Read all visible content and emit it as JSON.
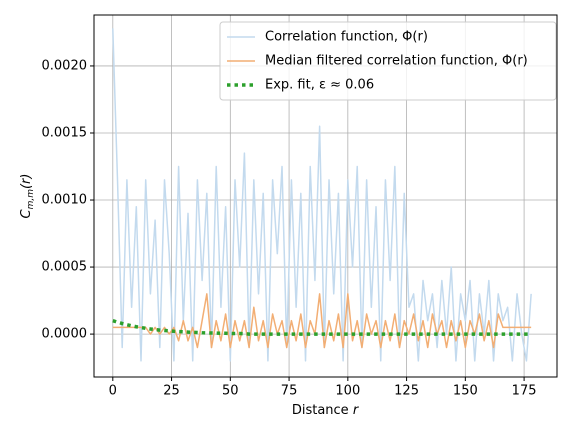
{
  "chart_data": {
    "type": "line",
    "x": [
      0,
      2,
      4,
      6,
      8,
      10,
      12,
      14,
      16,
      18,
      20,
      22,
      24,
      26,
      28,
      30,
      32,
      34,
      36,
      38,
      40,
      42,
      44,
      46,
      48,
      50,
      52,
      54,
      56,
      58,
      60,
      62,
      64,
      66,
      68,
      70,
      72,
      74,
      76,
      78,
      80,
      82,
      84,
      86,
      88,
      90,
      92,
      94,
      96,
      98,
      100,
      102,
      104,
      106,
      108,
      110,
      112,
      114,
      116,
      118,
      120,
      122,
      124,
      126,
      128,
      130,
      132,
      134,
      136,
      138,
      140,
      142,
      144,
      146,
      148,
      150,
      152,
      154,
      156,
      158,
      160,
      162,
      164,
      166,
      168,
      170,
      172,
      174,
      176,
      178
    ],
    "series": [
      {
        "name": "Correlation function, Φ(r)",
        "color": "#c3daee",
        "linestyle": "solid",
        "values": [
          0.00228,
          0.00115,
          -0.0001,
          0.00115,
          0.0002,
          0.00095,
          -0.0002,
          0.00115,
          0.0003,
          0.00085,
          -0.0001,
          0.00115,
          0.0006,
          -0.0002,
          0.00125,
          0.0001,
          0.0009,
          -0.0002,
          0.00115,
          0.0004,
          0.00105,
          -0.0001,
          0.00125,
          0.0002,
          0.00095,
          -0.0002,
          0.00115,
          0.0005,
          0.00135,
          -0.0001,
          0.00115,
          0.0003,
          0.00105,
          -0.0002,
          0.00115,
          0.0006,
          0.00125,
          -0.0001,
          0.00115,
          0.0002,
          0.00105,
          -0.0002,
          0.00125,
          0.0004,
          0.00155,
          -0.0001,
          0.00115,
          0.0003,
          0.00105,
          -0.0002,
          0.00115,
          0.0005,
          0.00125,
          -0.0001,
          0.00115,
          0.0002,
          0.00095,
          -0.0002,
          0.00115,
          0.0004,
          0.00125,
          -0.0001,
          0.00105,
          0.0002,
          0.0003,
          -0.0002,
          0.0004,
          0.0001,
          0.0003,
          -0.0001,
          0.0004,
          0.0,
          0.0005,
          -0.0002,
          0.0003,
          0.0001,
          0.0004,
          -0.0002,
          0.0003,
          0.0,
          0.0004,
          -0.0002,
          0.0003,
          0.0001,
          0.0002,
          -0.0002,
          0.0003,
          0.0,
          -0.0002,
          0.0003
        ]
      },
      {
        "name": "Median filtered correlation function, Φ(r)",
        "color": "#f2ae74",
        "linestyle": "solid",
        "values": [
          5e-05,
          5e-05,
          5e-05,
          5e-05,
          5e-05,
          5e-05,
          5e-05,
          5e-05,
          0.0,
          5e-05,
          0.0,
          5e-05,
          0.0,
          5e-05,
          -5e-05,
          0.0001,
          -5e-05,
          5e-05,
          -0.0001,
          0.0001,
          0.0003,
          -0.0001,
          0.0001,
          -5e-05,
          0.00015,
          -0.0001,
          0.0001,
          -5e-05,
          0.0001,
          -0.0001,
          0.0002,
          -5e-05,
          0.0001,
          -0.0001,
          0.00015,
          0.0,
          0.0001,
          -0.0001,
          0.0001,
          -5e-05,
          0.00015,
          -0.0001,
          0.0001,
          0.0,
          0.0003,
          -0.0001,
          0.0001,
          -5e-05,
          0.00015,
          -0.0001,
          0.0003,
          -5e-05,
          0.0001,
          -0.0001,
          0.00015,
          0.0,
          0.0001,
          -0.0001,
          0.0001,
          -5e-05,
          0.00015,
          -0.0001,
          0.0001,
          0.0,
          0.00015,
          -5e-05,
          0.0001,
          -0.0001,
          0.00015,
          0.0,
          0.0001,
          -0.0001,
          0.0001,
          -5e-05,
          0.0001,
          -0.0001,
          0.0001,
          0.0,
          0.00015,
          -5e-05,
          0.0001,
          -0.0001,
          0.00015,
          5e-05,
          5e-05,
          5e-05,
          5e-05,
          5e-05,
          5e-05,
          5e-05
        ]
      },
      {
        "name": "Exp. fit, ε ≈ 0.06",
        "color": "#2ca02c",
        "linestyle": "dotted",
        "values": [
          0.0001,
          8.9e-05,
          7.9e-05,
          7e-05,
          6.2e-05,
          5.5e-05,
          4.9e-05,
          4.3e-05,
          3.8e-05,
          3.4e-05,
          3e-05,
          2.7e-05,
          2.4e-05,
          2.1e-05,
          1.9e-05,
          1.7e-05,
          1.5e-05,
          1.3e-05,
          1.2e-05,
          1e-05,
          9e-06,
          8e-06,
          7e-06,
          6e-06,
          6e-06,
          5e-06,
          4e-06,
          4e-06,
          3e-06,
          0,
          0,
          0,
          0,
          0,
          0,
          0,
          0,
          0,
          0,
          0,
          0,
          0,
          0,
          0,
          0,
          0,
          0,
          0,
          0,
          0,
          0,
          0,
          0,
          0,
          0,
          0,
          0,
          0,
          0,
          0,
          0,
          0,
          0,
          0,
          0,
          0,
          0,
          0,
          0,
          0,
          0,
          0,
          0,
          0,
          0,
          0,
          0,
          0,
          0,
          0,
          0,
          0,
          0,
          0,
          0,
          0,
          0,
          0,
          0,
          0
        ]
      }
    ],
    "xlim": [
      -8,
      189
    ],
    "ylim": [
      -0.00032,
      0.00238
    ],
    "xticks": [
      0,
      25,
      50,
      75,
      100,
      125,
      150,
      175
    ],
    "yticks": [
      {
        "value": 0,
        "label": "0.0000"
      },
      {
        "value": 0.0005,
        "label": "0.0005"
      },
      {
        "value": 0.001,
        "label": "0.0010"
      },
      {
        "value": 0.0015,
        "label": "0.0015"
      },
      {
        "value": 0.002,
        "label": "0.0020"
      }
    ],
    "xlabel": {
      "text": "Distance ",
      "var": "r"
    },
    "ylabel": {
      "base": "C",
      "sub": "m,m",
      "tail": "(r)"
    },
    "grid": true,
    "legend": "upper right"
  }
}
